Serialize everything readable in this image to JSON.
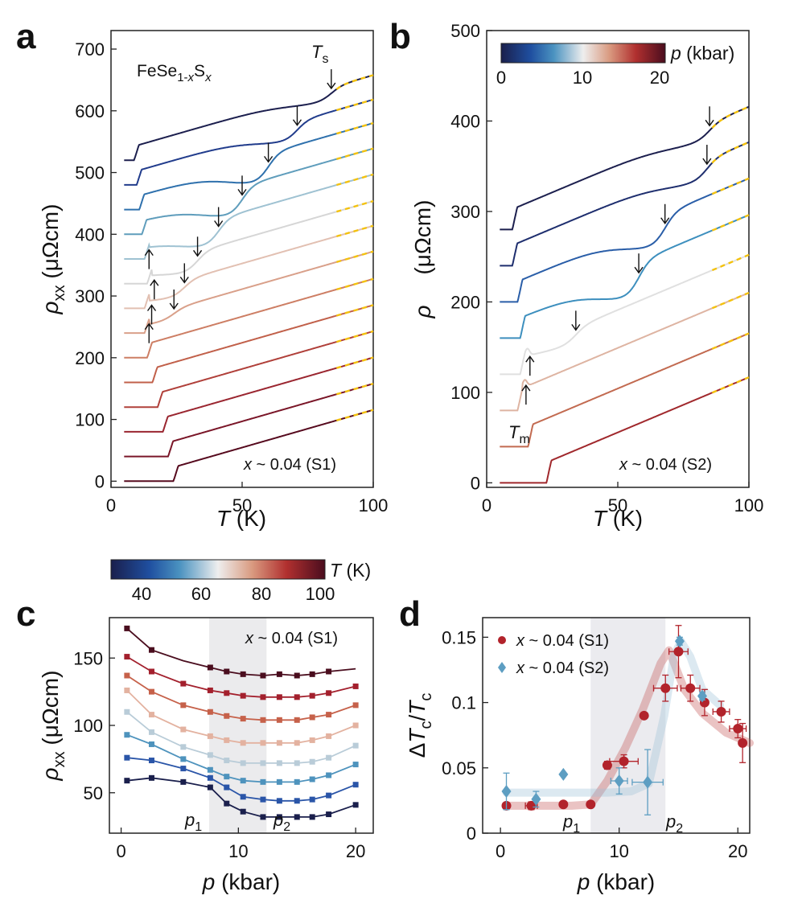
{
  "figure": {
    "panels": [
      "a",
      "b",
      "c",
      "d"
    ]
  },
  "colorbar_p": {
    "label_var": "p",
    "label_unit": " (kbar)",
    "ticks": [
      "0",
      "10",
      "20"
    ]
  },
  "colorbar_T": {
    "label_var": "T",
    "label_unit": " (K)",
    "ticks": [
      "40",
      "60",
      "80",
      "100"
    ]
  },
  "chart_data": [
    {
      "panel": "a",
      "type": "line",
      "title": "",
      "xlabel_var": "T",
      "xlabel_unit": " (K)",
      "ylabel_var": "ρ",
      "ylabel_sub": "xx",
      "ylabel_unit": " (μΩcm)",
      "xlim": [
        0,
        100
      ],
      "ylim": [
        -10,
        730
      ],
      "xticks": [
        0,
        50,
        100
      ],
      "yticks": [
        0,
        100,
        200,
        300,
        400,
        500,
        600,
        700
      ],
      "xtick_labels": [
        "0",
        "50",
        "100"
      ],
      "ytick_labels": [
        "0",
        "100",
        "200",
        "300",
        "400",
        "500",
        "600",
        "700"
      ],
      "compound_label": {
        "text": "FeSe",
        "sub1": "1-",
        "sub_x": "x",
        "main2": "S",
        "sub2": "x"
      },
      "sample_label": {
        "var": "x",
        "text": " ~ 0.04 (S1)"
      },
      "ts_label": {
        "var": "T",
        "sub": "s"
      },
      "series": [
        {
          "offset": 520,
          "tc": 10,
          "kneeT": 84,
          "kneeDrop": 10,
          "color": "#1c1f4e",
          "hasArrow": true
        },
        {
          "offset": 480,
          "tc": 11,
          "kneeT": 71,
          "kneeDrop": 14,
          "color": "#213c8c",
          "hasArrow": true
        },
        {
          "offset": 440,
          "tc": 12,
          "kneeT": 60,
          "kneeDrop": 22,
          "color": "#2f71ad",
          "hasArrow": true
        },
        {
          "offset": 400,
          "tc": 13,
          "kneeT": 50,
          "kneeDrop": 22,
          "color": "#5f9dbc",
          "hasArrow": true
        },
        {
          "offset": 360,
          "tc": 14,
          "kneeT": 41,
          "kneeDrop": 20,
          "color": "#9fc2d2",
          "hasArrow": true,
          "hasUp": true,
          "upT": 14.5
        },
        {
          "offset": 320,
          "tc": 15,
          "kneeT": 33,
          "kneeDrop": 15,
          "color": "#d6d6d6",
          "hasArrow": true,
          "hasUp": true,
          "upT": 16.5
        },
        {
          "offset": 280,
          "tc": 14,
          "kneeT": 28,
          "kneeDrop": 12,
          "color": "#e2c0b2",
          "hasArrow": true,
          "hasUp": true,
          "upT": 15.5
        },
        {
          "offset": 240,
          "tc": 14,
          "kneeT": 24,
          "kneeDrop": 8,
          "color": "#d9a08a",
          "hasArrow": true,
          "hasUp": true,
          "upT": 14.5
        },
        {
          "offset": 200,
          "tc": 15,
          "kneeT": 0,
          "kneeDrop": 0,
          "color": "#cd7e64",
          "hasArrow": false
        },
        {
          "offset": 160,
          "tc": 17,
          "kneeT": 0,
          "kneeDrop": 0,
          "color": "#c1604a",
          "hasArrow": false
        },
        {
          "offset": 120,
          "tc": 19,
          "kneeT": 0,
          "kneeDrop": 0,
          "color": "#b0403a",
          "hasArrow": false
        },
        {
          "offset": 80,
          "tc": 21,
          "kneeT": 0,
          "kneeDrop": 0,
          "color": "#9a2630",
          "hasArrow": false
        },
        {
          "offset": 40,
          "tc": 23,
          "kneeT": 0,
          "kneeDrop": 0,
          "color": "#7a1628",
          "hasArrow": false
        },
        {
          "offset": 0,
          "tc": 25,
          "kneeT": 0,
          "kneeDrop": 0,
          "color": "#560a1e",
          "hasArrow": false
        }
      ]
    },
    {
      "panel": "b",
      "type": "line",
      "title": "",
      "xlabel_var": "T",
      "xlabel_unit": " (K)",
      "ylabel_var": "ρ",
      "ylabel_unit": " (μΩcm)",
      "xlim": [
        0,
        100
      ],
      "ylim": [
        -5,
        500
      ],
      "xticks": [
        0,
        50,
        100
      ],
      "yticks": [
        0,
        100,
        200,
        300,
        400,
        500
      ],
      "xtick_labels": [
        "0",
        "50",
        "100"
      ],
      "ytick_labels": [
        "0",
        "100",
        "200",
        "300",
        "400",
        "500"
      ],
      "sample_label": {
        "var": "x",
        "text": " ~ 0.04 (S2)"
      },
      "tm_label": {
        "var": "T",
        "sub": "m"
      },
      "series": [
        {
          "offset": 280,
          "tc": 11,
          "kneeT": 85,
          "kneeDrop": 8,
          "color": "#1c1f4e",
          "hasArrow": true
        },
        {
          "offset": 240,
          "tc": 11,
          "kneeT": 84,
          "kneeDrop": 10,
          "color": "#1e2e6e",
          "hasArrow": true
        },
        {
          "offset": 200,
          "tc": 13,
          "kneeT": 68,
          "kneeDrop": 16,
          "color": "#2a5ea8",
          "hasArrow": true
        },
        {
          "offset": 160,
          "tc": 14,
          "kneeT": 58,
          "kneeDrop": 18,
          "color": "#3d8fbe",
          "hasArrow": true
        },
        {
          "offset": 120,
          "tc": 14,
          "kneeT": 34,
          "kneeDrop": 8,
          "color": "#e0e0e0",
          "hasArrow": true,
          "hasUp": true,
          "upT": 16.5,
          "bump": true
        },
        {
          "offset": 80,
          "tc": 13,
          "kneeT": 0,
          "kneeDrop": 0,
          "color": "#deb4a2",
          "hasArrow": false,
          "hasUp": true,
          "upT": 15,
          "bump": true
        },
        {
          "offset": 40,
          "tc": 17,
          "kneeT": 0,
          "kneeDrop": 0,
          "color": "#c26a50",
          "hasArrow": false
        },
        {
          "offset": 0,
          "tc": 24,
          "kneeT": 0,
          "kneeDrop": 0,
          "color": "#a0282c",
          "hasArrow": false
        }
      ]
    },
    {
      "panel": "c",
      "type": "line",
      "title": "",
      "xlabel_var": "p",
      "xlabel_unit": " (kbar)",
      "ylabel_var": "ρ",
      "ylabel_sub": "xx",
      "ylabel_unit": " (μΩcm)",
      "xlim": [
        -1,
        21.5
      ],
      "ylim": [
        20,
        180
      ],
      "xticks": [
        0,
        10,
        20
      ],
      "yticks": [
        50,
        100,
        150
      ],
      "xtick_labels": [
        "0",
        "10",
        "20"
      ],
      "ytick_labels": [
        "50",
        "100",
        "150"
      ],
      "shade": [
        7.5,
        12.4
      ],
      "p1_label": {
        "var": "p",
        "sub": "1"
      },
      "p2_label": {
        "var": "p",
        "sub": "2"
      },
      "sample_label": {
        "var": "x",
        "text": " ~ 0.04 (S1)"
      },
      "x": [
        0.5,
        2.6,
        5.3,
        7.6,
        9.0,
        10.4,
        12.1,
        13.5,
        15.0,
        16.3,
        17.7,
        20.0
      ],
      "series": [
        {
          "name": "100 K",
          "color": "#4a0d1e",
          "values": [
            172,
            156,
            148,
            143,
            140,
            138,
            137,
            138,
            137,
            138,
            140,
            142
          ],
          "markers": [
            0,
            1,
            3,
            4,
            5,
            6,
            7,
            8,
            9,
            10
          ]
        },
        {
          "name": "90 K",
          "color": "#a3202d",
          "values": [
            151,
            140,
            131,
            126,
            124,
            122,
            121,
            121,
            121,
            122,
            124,
            129
          ]
        },
        {
          "name": "80 K",
          "color": "#c6614a",
          "values": [
            137,
            125,
            115,
            110,
            107,
            105,
            104,
            104,
            104,
            106,
            108,
            115
          ]
        },
        {
          "name": "72 K",
          "color": "#e3b2a0",
          "values": [
            126,
            108,
            97,
            92,
            89,
            87,
            87,
            87,
            87,
            89,
            92,
            100
          ]
        },
        {
          "name": "64 K",
          "color": "#b9ccd8",
          "values": [
            110,
            95,
            84,
            78,
            74,
            72,
            72,
            72,
            72,
            73,
            76,
            85
          ]
        },
        {
          "name": "56 K",
          "color": "#4e93bd",
          "values": [
            93,
            86,
            75,
            67,
            62,
            59,
            58,
            58,
            58,
            60,
            63,
            71
          ]
        },
        {
          "name": "48 K",
          "color": "#2a55a8",
          "values": [
            76,
            74,
            68,
            61,
            54,
            47,
            45,
            44,
            44,
            45,
            48,
            56
          ]
        },
        {
          "name": "40 K",
          "color": "#1a1f4c",
          "values": [
            59,
            61,
            58,
            54,
            42,
            36,
            32,
            32,
            32,
            32,
            34,
            41
          ]
        }
      ]
    },
    {
      "panel": "d",
      "type": "scatter",
      "title": "",
      "xlabel_var": "p",
      "xlabel_unit": " (kbar)",
      "ylabel_delta": "Δ",
      "ylabel_var1": "T",
      "ylabel_sub1": "c",
      "ylabel_slash": "/",
      "ylabel_var2": "T",
      "ylabel_sub2": "c",
      "xlim": [
        -1.5,
        21
      ],
      "ylim": [
        0,
        0.165
      ],
      "xticks": [
        0,
        10,
        20
      ],
      "yticks": [
        0,
        0.05,
        0.1,
        0.15
      ],
      "xtick_labels": [
        "0",
        "10",
        "20"
      ],
      "ytick_labels": [
        "0",
        "0.05",
        "0.1",
        "0.15"
      ],
      "shade": [
        7.6,
        13.9
      ],
      "p1_label": {
        "var": "p",
        "sub": "1"
      },
      "p2_label": {
        "var": "p",
        "sub": "2"
      },
      "legend": [
        {
          "var": "x",
          "text": " ~ 0.04 (S1)",
          "color": "#b2232b",
          "marker": "circle"
        },
        {
          "var": "x",
          "text": " ~ 0.04 (S2)",
          "color": "#5d9ec2",
          "marker": "diamond"
        }
      ],
      "series": [
        {
          "name": "S1",
          "color": "#b2232b",
          "marker": "circle",
          "x": [
            0.5,
            2.6,
            5.3,
            7.6,
            9.0,
            10.4,
            12.1,
            13.9,
            15.0,
            16.0,
            17.2,
            18.6,
            20.0
          ],
          "y": [
            0.021,
            0.021,
            0.022,
            0.022,
            0.052,
            0.055,
            0.09,
            0.111,
            0.139,
            0.111,
            0.1,
            0.093,
            0.08
          ],
          "xerr": [
            0,
            0.5,
            0,
            0,
            0,
            1.2,
            0,
            1.0,
            0.8,
            0.8,
            0,
            0.7,
            0.7
          ],
          "yerr": [
            0,
            0.003,
            0,
            0,
            0.003,
            0.005,
            0,
            0.01,
            0.02,
            0.01,
            0.01,
            0.008,
            0.007
          ]
        },
        {
          "name": "S2",
          "color": "#5d9ec2",
          "marker": "diamond",
          "x": [
            0.5,
            3.0,
            5.3,
            10.0,
            12.4,
            15.1,
            17.0
          ],
          "y": [
            0.032,
            0.026,
            0.045,
            0.04,
            0.039,
            0.147,
            0.105
          ],
          "xerr": [
            0,
            0,
            0,
            0.7,
            1.3,
            0,
            0
          ],
          "yerr": [
            0.014,
            0.006,
            0,
            0.01,
            0.025,
            0.003,
            0.003
          ]
        },
        {
          "name": "S1 extra",
          "color": "#b2232b",
          "marker": "circle",
          "x": [
            20.4
          ],
          "y": [
            0.069
          ],
          "xerr": [
            0
          ],
          "yerr": [
            0.015
          ]
        }
      ],
      "guides": [
        {
          "name": "S1 guide",
          "color": "#c25454",
          "x": [
            0.5,
            3,
            6,
            7.6,
            9,
            10.5,
            12,
            13.5,
            14.2,
            15.5,
            17,
            19,
            21
          ],
          "y": [
            0.021,
            0.021,
            0.021,
            0.022,
            0.04,
            0.065,
            0.095,
            0.13,
            0.14,
            0.11,
            0.092,
            0.077,
            0.069
          ]
        },
        {
          "name": "S2 guide",
          "color": "#9cc0d6",
          "x": [
            0.5,
            3,
            6,
            9,
            11,
            12.5,
            13.8,
            14.6,
            15.2,
            16,
            17,
            18.5
          ],
          "y": [
            0.031,
            0.031,
            0.031,
            0.031,
            0.032,
            0.038,
            0.09,
            0.135,
            0.147,
            0.135,
            0.11,
            0.098
          ]
        }
      ]
    }
  ]
}
